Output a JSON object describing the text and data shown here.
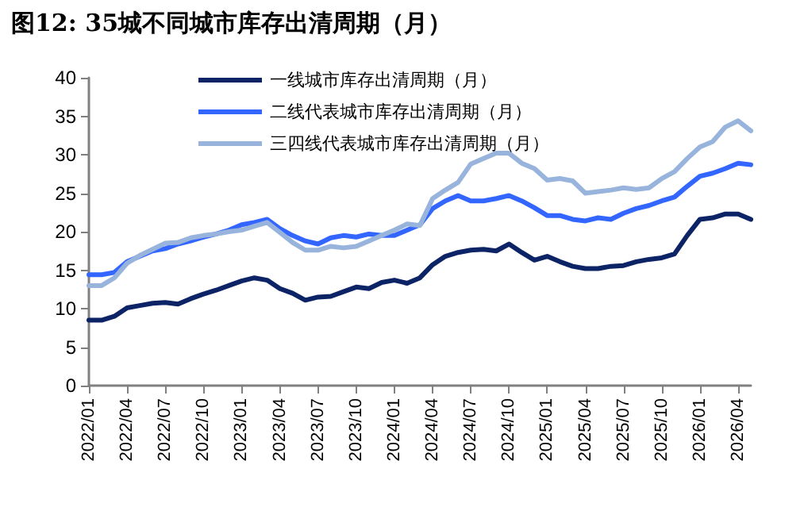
{
  "chart_data": {
    "type": "line",
    "title": "图12: 35城不同城市库存出清周期（月）",
    "categories": [
      "2022/01",
      null,
      null,
      "2022/04",
      null,
      null,
      "2022/07",
      null,
      null,
      "2022/10",
      null,
      null,
      "2023/01",
      null,
      null,
      "2023/04",
      null,
      null,
      "2023/07",
      null,
      null,
      "2023/10",
      null,
      null,
      "2024/01",
      null,
      null,
      "2024/04",
      null,
      null,
      "2024/07",
      null,
      null,
      "2024/10",
      null,
      null,
      "2025/01",
      null,
      null,
      "2025/04",
      null,
      null,
      "2025/07",
      null,
      null,
      "2025/10",
      null,
      null,
      "2026/01",
      null,
      null,
      "2026/04",
      null
    ],
    "series": [
      {
        "name": "一线城市库存出清周期（月）",
        "color": "#0c2366",
        "values": [
          8.5,
          8.5,
          9.0,
          10.1,
          10.4,
          10.7,
          10.8,
          10.6,
          11.3,
          11.9,
          12.4,
          13.0,
          13.6,
          14.0,
          13.7,
          12.6,
          12.0,
          11.1,
          11.5,
          11.6,
          12.2,
          12.8,
          12.6,
          13.4,
          13.7,
          13.3,
          14.0,
          15.7,
          16.8,
          17.3,
          17.6,
          17.7,
          17.5,
          18.4,
          17.3,
          16.3,
          16.8,
          16.1,
          15.5,
          15.2,
          15.2,
          15.5,
          15.6,
          16.1,
          16.4,
          16.6,
          17.1,
          19.5,
          21.6,
          21.8,
          22.3,
          22.3,
          21.6
        ]
      },
      {
        "name": "二线代表城市库存出清周期（月）",
        "color": "#3366ff",
        "values": [
          14.4,
          14.4,
          14.7,
          16.1,
          16.8,
          17.5,
          17.8,
          18.4,
          18.8,
          19.3,
          19.7,
          20.2,
          20.9,
          21.2,
          21.6,
          20.4,
          19.5,
          18.8,
          18.4,
          19.2,
          19.5,
          19.3,
          19.7,
          19.5,
          19.5,
          20.2,
          20.9,
          23.0,
          24.0,
          24.7,
          24.0,
          24.0,
          24.3,
          24.7,
          24.0,
          23.1,
          22.1,
          22.1,
          21.6,
          21.4,
          21.8,
          21.6,
          22.4,
          23.0,
          23.4,
          24.0,
          24.5,
          25.9,
          27.2,
          27.6,
          28.2,
          28.9,
          28.7
        ]
      },
      {
        "name": "三四线代表城市库存出清周期（月）",
        "color": "#98b4dc",
        "values": [
          13.0,
          13.0,
          14.0,
          15.9,
          16.9,
          17.7,
          18.5,
          18.6,
          19.2,
          19.5,
          19.7,
          20.0,
          20.2,
          20.7,
          21.2,
          19.9,
          18.6,
          17.6,
          17.6,
          18.1,
          17.9,
          18.1,
          18.8,
          19.5,
          20.2,
          21.0,
          20.8,
          24.3,
          25.4,
          26.4,
          28.8,
          29.5,
          30.2,
          30.2,
          28.9,
          28.2,
          26.7,
          26.9,
          26.6,
          25.0,
          25.2,
          25.4,
          25.7,
          25.5,
          25.7,
          26.9,
          27.8,
          29.5,
          31.0,
          31.7,
          33.6,
          34.4,
          33.1
        ]
      }
    ],
    "ylim": [
      0,
      40
    ],
    "yticks": [
      0,
      5,
      10,
      15,
      20,
      25,
      30,
      35,
      40
    ],
    "grid": false,
    "legend": "top",
    "marker": "none",
    "line_style": "solid"
  }
}
